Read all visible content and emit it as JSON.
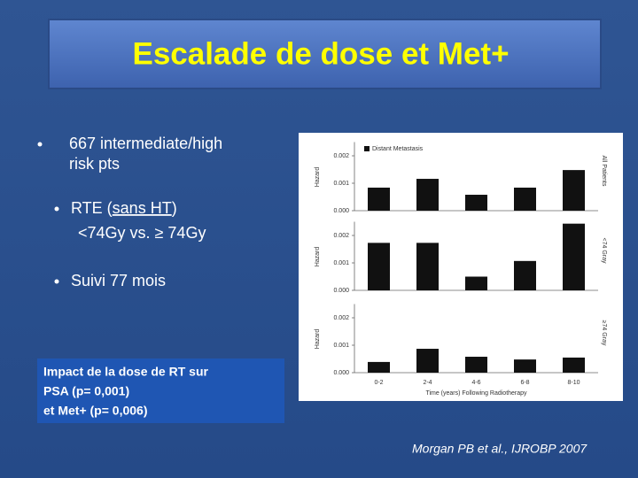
{
  "title": "Escalade de dose et Met+",
  "bullets": [
    [
      "667 intermediate/high",
      "risk pts"
    ],
    [
      [
        "RTE (",
        "sans HT",
        ")"
      ],
      "<74Gy vs. ≥ 74Gy"
    ],
    [
      "Suivi 77 mois"
    ]
  ],
  "box": [
    "Impact de la dose de RT sur",
    " PSA (p= 0,001)",
    "et Met+ (p= 0,006)"
  ],
  "citation": "Morgan PB et al., IJROBP 2007",
  "chart_data": [
    {
      "type": "bar",
      "ylabel": "Hazard",
      "panel_label": "All Patients",
      "legend": "Distant Metastasis",
      "color": "#111111",
      "values": [
        0.00084,
        0.00116,
        0.00058,
        0.00084,
        0.00148
      ],
      "ylim": [
        0,
        0.0025
      ],
      "yticks": [
        {
          "value": 0,
          "label": "0.000"
        },
        {
          "value": 0.001,
          "label": "0.001"
        },
        {
          "value": 0.002,
          "label": "0.002"
        }
      ]
    },
    {
      "type": "bar",
      "ylabel": "Hazard",
      "panel_label": "<74 Gray",
      "color": "#111111",
      "values": [
        0.00173,
        0.00173,
        0.0005,
        0.00107,
        0.00243
      ],
      "ylim": [
        0,
        0.0025
      ],
      "yticks": [
        {
          "value": 0,
          "label": "0.000"
        },
        {
          "value": 0.001,
          "label": "0.001"
        },
        {
          "value": 0.002,
          "label": "0.002"
        }
      ]
    },
    {
      "type": "bar",
      "ylabel": "Hazard",
      "panel_label": "≥74 Gray",
      "color": "#111111",
      "xlabel": "Time (years) Following Radiotherapy",
      "categories": [
        "0-2",
        "2-4",
        "4-6",
        "6-8",
        "8-10"
      ],
      "values": [
        0.00039,
        0.00087,
        0.00058,
        0.00048,
        0.00055
      ],
      "ylim": [
        0,
        0.0025
      ],
      "yticks": [
        {
          "value": 0,
          "label": "0.000"
        },
        {
          "value": 0.001,
          "label": "0.001"
        },
        {
          "value": 0.002,
          "label": "0.002"
        }
      ]
    }
  ]
}
